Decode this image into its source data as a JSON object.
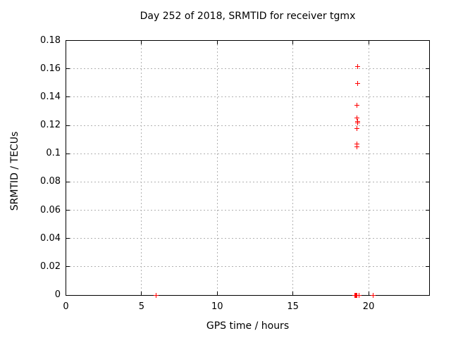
{
  "title": "Day 252 of 2018, SRMTID for receiver tgmx",
  "colors": {
    "background": "#ffffff",
    "axis": "#000000",
    "grid": "#b1b1b1",
    "marker": "#ff0000"
  },
  "chart_data": {
    "type": "scatter",
    "title": "Day 252 of 2018, SRMTID for receiver tgmx",
    "xlabel": "GPS time / hours",
    "ylabel": "SRMTID / TECUs",
    "xlim": [
      0,
      24
    ],
    "ylim": [
      0,
      0.18
    ],
    "grid": true,
    "legend": "none",
    "marker": "plus",
    "marker_color": "#ff0000",
    "xticks": [
      {
        "v": 0,
        "label": "0"
      },
      {
        "v": 5,
        "label": "5"
      },
      {
        "v": 10,
        "label": "10"
      },
      {
        "v": 15,
        "label": "15"
      },
      {
        "v": 20,
        "label": "20"
      }
    ],
    "yticks": [
      {
        "v": 0,
        "label": "0"
      },
      {
        "v": 0.02,
        "label": "0.02"
      },
      {
        "v": 0.04,
        "label": "0.04"
      },
      {
        "v": 0.06,
        "label": "0.06"
      },
      {
        "v": 0.08,
        "label": "0.08"
      },
      {
        "v": 0.1,
        "label": "0.1"
      },
      {
        "v": 0.12,
        "label": "0.12"
      },
      {
        "v": 0.14,
        "label": "0.14"
      },
      {
        "v": 0.16,
        "label": "0.16"
      },
      {
        "v": 0.18,
        "label": "0.18"
      }
    ],
    "series": [
      {
        "name": "SRMTID",
        "points": [
          [
            5.97,
            0
          ],
          [
            19.1,
            0
          ],
          [
            19.13,
            0
          ],
          [
            19.16,
            0
          ],
          [
            19.19,
            0
          ],
          [
            19.22,
            0
          ],
          [
            19.37,
            0
          ],
          [
            20.3,
            0
          ],
          [
            19.22,
            0.105
          ],
          [
            19.22,
            0.107
          ],
          [
            19.25,
            0.118
          ],
          [
            19.27,
            0.1215
          ],
          [
            19.27,
            0.1228
          ],
          [
            19.25,
            0.125
          ],
          [
            19.25,
            0.134
          ],
          [
            19.28,
            0.1495
          ],
          [
            19.28,
            0.1615
          ]
        ]
      }
    ]
  }
}
